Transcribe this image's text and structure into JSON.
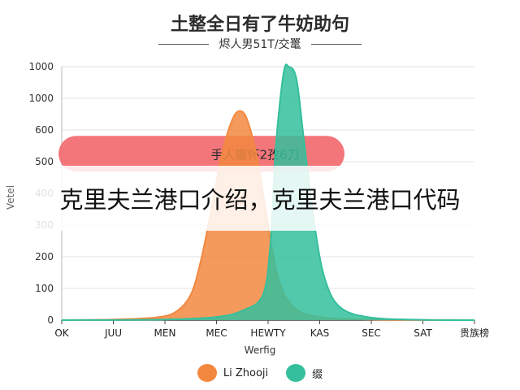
{
  "chart_data": {
    "type": "area",
    "title": "土整全日有了牛妨助句",
    "subtitle": "烬人男51T/交鼍",
    "xlabel": "Werfig",
    "ylabel": "Vetel",
    "categories": [
      "OK",
      "JUU",
      "MEN",
      "MEC",
      "HEWTY",
      "KAS",
      "SEC",
      "SAT",
      "贵族榜"
    ],
    "y_tick_labels": [
      "0",
      "100",
      "200",
      "300",
      "400",
      "500",
      "600",
      "1000",
      "1000"
    ],
    "series": [
      {
        "name": "Li Zhooji",
        "color": "#f2883f",
        "points": [
          [
            0,
            0
          ],
          [
            1,
            2
          ],
          [
            1.8,
            8
          ],
          [
            2.2,
            25
          ],
          [
            2.5,
            80
          ],
          [
            2.7,
            190
          ],
          [
            2.9,
            350
          ],
          [
            3.1,
            520
          ],
          [
            3.3,
            630
          ],
          [
            3.45,
            660
          ],
          [
            3.6,
            630
          ],
          [
            3.8,
            500
          ],
          [
            4.0,
            300
          ],
          [
            4.2,
            130
          ],
          [
            4.5,
            40
          ],
          [
            5,
            10
          ],
          [
            6,
            2
          ],
          [
            8,
            0
          ]
        ]
      },
      {
        "name": "缀",
        "color": "#35bf9c",
        "points": [
          [
            0,
            0
          ],
          [
            2,
            2
          ],
          [
            3,
            10
          ],
          [
            3.5,
            30
          ],
          [
            3.9,
            80
          ],
          [
            4.05,
            250
          ],
          [
            4.15,
            550
          ],
          [
            4.3,
            780
          ],
          [
            4.4,
            800
          ],
          [
            4.55,
            760
          ],
          [
            4.7,
            560
          ],
          [
            4.9,
            300
          ],
          [
            5.1,
            130
          ],
          [
            5.4,
            40
          ],
          [
            6,
            8
          ],
          [
            7,
            1
          ],
          [
            8,
            0
          ]
        ]
      }
    ],
    "annotation": "手人瓣怀2孜6刀",
    "grid": "horizontal",
    "legend_position": "bottom-center"
  },
  "overlay_text": "克里夫兰港口介绍，克里夫兰港口代码"
}
